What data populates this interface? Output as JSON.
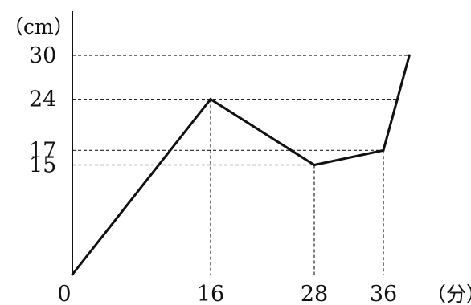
{
  "chart_data": {
    "type": "line",
    "xlabel": "（分）",
    "ylabel": "（cm）",
    "origin_label": "0",
    "x_ticks": [
      16,
      28,
      36
    ],
    "y_ticks": [
      15,
      17,
      24,
      30
    ],
    "grid": false,
    "guide_lines": true,
    "series": [
      {
        "points": [
          {
            "x": 0,
            "y": 0
          },
          {
            "x": 16,
            "y": 24
          },
          {
            "x": 28,
            "y": 15
          },
          {
            "x": 36,
            "y": 17
          },
          {
            "x": 39,
            "y": 30
          }
        ]
      }
    ]
  }
}
